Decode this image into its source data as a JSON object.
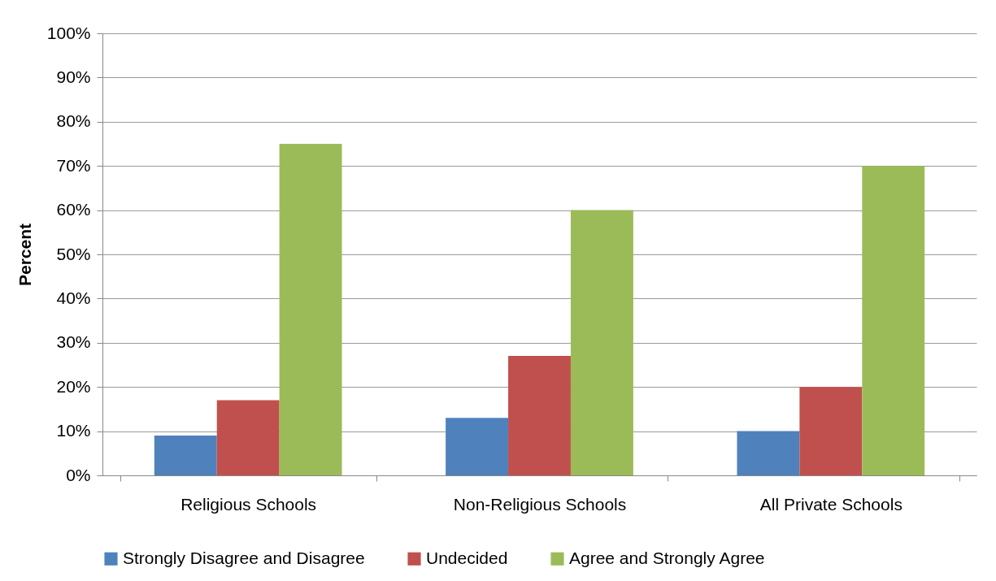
{
  "chart_data": {
    "type": "bar",
    "ylabel": "Percent",
    "categories": [
      "Religious Schools",
      "Non-Religious Schools",
      "All Private Schools"
    ],
    "series": [
      {
        "name": "Strongly Disagree and Disagree",
        "color": "#4f81bd",
        "values": [
          9,
          13,
          10
        ]
      },
      {
        "name": "Undecided",
        "color": "#c0504d",
        "values": [
          17,
          27,
          20
        ]
      },
      {
        "name": "Agree and  Strongly Agree",
        "color": "#9bbb59",
        "values": [
          75,
          60,
          70
        ]
      }
    ],
    "ylim": [
      0,
      100
    ],
    "yticks": [
      {
        "value": 0,
        "label": "0%"
      },
      {
        "value": 10,
        "label": "10%"
      },
      {
        "value": 20,
        "label": "20%"
      },
      {
        "value": 30,
        "label": "30%"
      },
      {
        "value": 40,
        "label": "40%"
      },
      {
        "value": 50,
        "label": "50%"
      },
      {
        "value": 60,
        "label": "60%"
      },
      {
        "value": 70,
        "label": "70%"
      },
      {
        "value": 80,
        "label": "80%"
      },
      {
        "value": 90,
        "label": "90%"
      },
      {
        "value": 100,
        "label": "100%"
      }
    ],
    "grid": "y",
    "legend": "bottom"
  }
}
